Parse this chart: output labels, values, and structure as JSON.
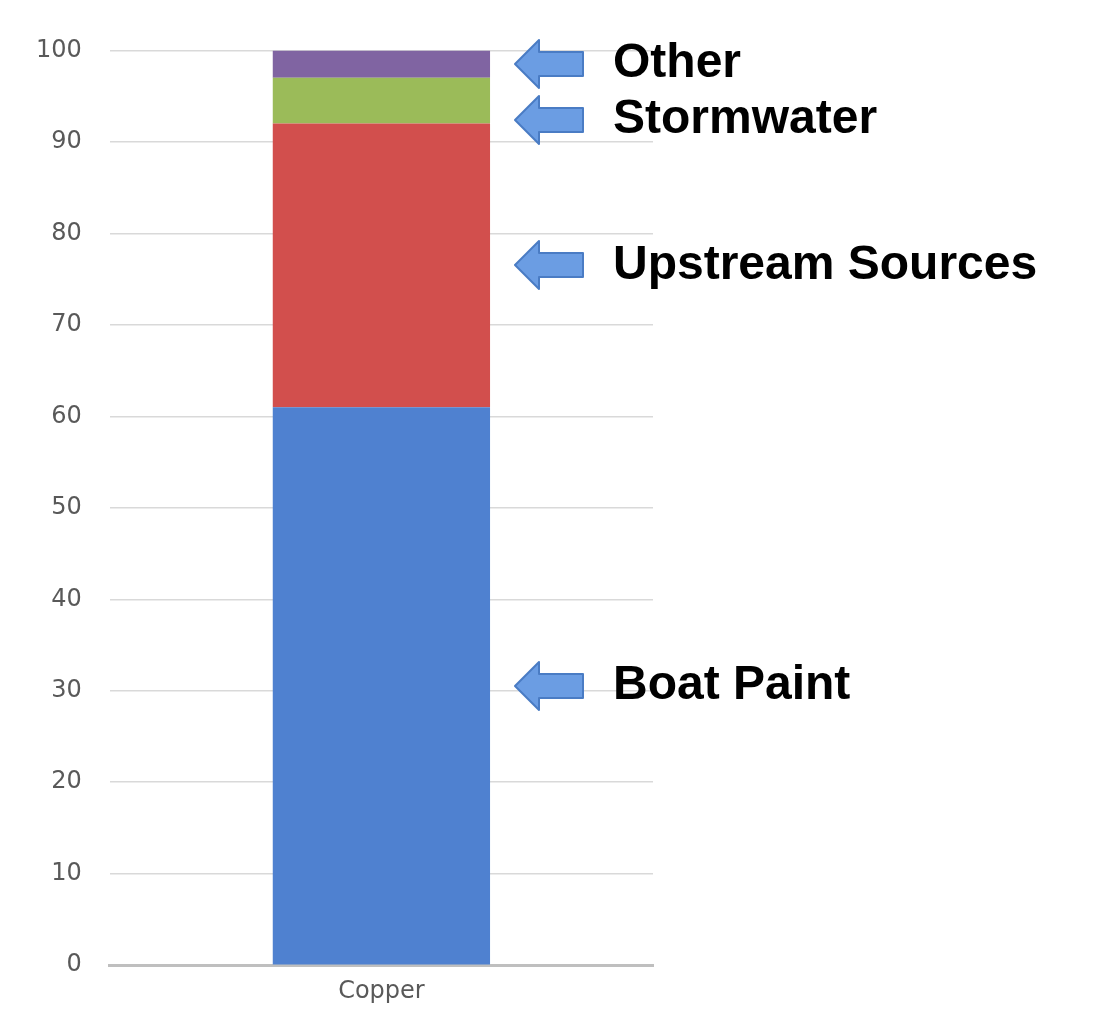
{
  "chart_data": {
    "type": "bar",
    "stacked": true,
    "categories": [
      "Copper"
    ],
    "series": [
      {
        "name": "Boat Paint",
        "color": "#4f81d0",
        "values": [
          61
        ]
      },
      {
        "name": "Upstream Sources",
        "color": "#d24f4d",
        "values": [
          31
        ]
      },
      {
        "name": "Stormwater",
        "color": "#9bbb59",
        "values": [
          5
        ]
      },
      {
        "name": "Other",
        "color": "#8064a2",
        "values": [
          3
        ]
      }
    ],
    "ylim": [
      0,
      100
    ],
    "yticks": [
      0,
      10,
      20,
      30,
      40,
      50,
      60,
      70,
      80,
      90,
      100
    ],
    "grid": "y",
    "legend": false
  }
}
